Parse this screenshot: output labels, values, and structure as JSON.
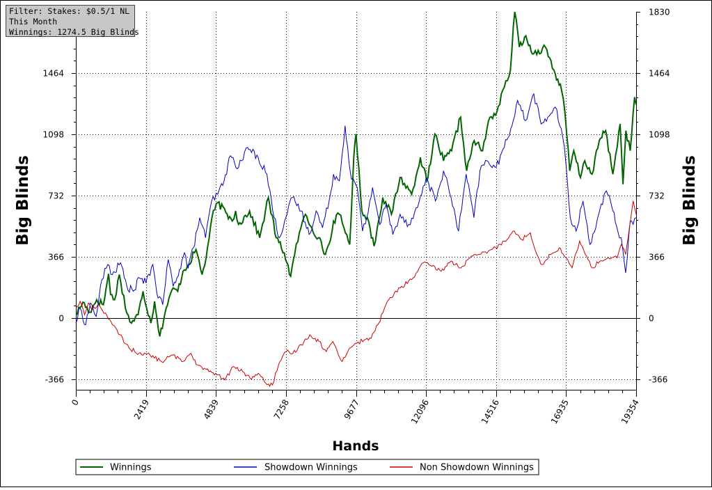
{
  "info": {
    "filter": "Filter: Stakes: $0.5/1 NL",
    "period": "This Month",
    "winnings": "Winnings: 1274.5 Big Blinds"
  },
  "chart_data": {
    "type": "line",
    "xlabel": "Hands",
    "ylabel": "Big Blinds",
    "ylabel_right": "Big Blinds",
    "xlim": [
      0,
      19354
    ],
    "ylim": [
      -420,
      1830
    ],
    "x_ticks": [
      0,
      2419,
      4839,
      7258,
      9677,
      12096,
      14516,
      16935,
      19354
    ],
    "y_ticks": [
      -366,
      0,
      366,
      732,
      1098,
      1464,
      1830
    ],
    "grid": true,
    "legend_position": "bottom",
    "series": [
      {
        "name": "Winnings",
        "color": "#006400",
        "x": [
          0,
          240,
          480,
          720,
          950,
          1130,
          1200,
          1340,
          1500,
          1760,
          1920,
          2150,
          2320,
          2590,
          2720,
          2900,
          3120,
          3360,
          3520,
          3700,
          3890,
          4150,
          4360,
          4500,
          4700,
          4900,
          5180,
          5400,
          5520,
          5620,
          6000,
          6350,
          6650,
          6920,
          7200,
          7420,
          7560,
          7720,
          7930,
          8150,
          8380,
          8620,
          8800,
          8900,
          9100,
          9260,
          9460,
          9600,
          9680,
          9880,
          10070,
          10300,
          10600,
          10900,
          11200,
          11600,
          11900,
          12120,
          12250,
          12400,
          12700,
          12980,
          13290,
          13500,
          13760,
          14050,
          14300,
          14540,
          14800,
          15010,
          15160,
          15320,
          15500,
          15820,
          16220,
          16560,
          16780,
          16900,
          17060,
          17200,
          17430,
          17580,
          17830,
          18080,
          18300,
          18550,
          18800,
          18900,
          19000,
          19150,
          19300,
          19354
        ],
        "y": [
          20,
          95,
          35,
          110,
          80,
          265,
          140,
          110,
          260,
          30,
          -30,
          20,
          160,
          -30,
          100,
          -110,
          60,
          180,
          160,
          280,
          320,
          410,
          260,
          360,
          600,
          690,
          630,
          580,
          640,
          560,
          640,
          480,
          720,
          480,
          390,
          250,
          380,
          510,
          620,
          540,
          480,
          380,
          470,
          580,
          620,
          540,
          440,
          960,
          1100,
          640,
          600,
          430,
          720,
          620,
          840,
          740,
          960,
          820,
          920,
          1100,
          940,
          1000,
          1200,
          880,
          1060,
          1000,
          1200,
          1230,
          1380,
          1480,
          1840,
          1620,
          1680,
          1580,
          1620,
          1460,
          1360,
          1220,
          880,
          1000,
          840,
          940,
          860,
          1060,
          1120,
          860,
          1160,
          800,
          1120,
          1000,
          1320,
          1274.5
        ]
      },
      {
        "name": "Showdown Winnings",
        "color": "#0000bb",
        "x": [
          0,
          150,
          340,
          500,
          700,
          900,
          1100,
          1260,
          1540,
          1760,
          1980,
          2200,
          2420,
          2660,
          2840,
          3000,
          3190,
          3360,
          3580,
          3750,
          3880,
          4060,
          4280,
          4480,
          4690,
          4900,
          5120,
          5340,
          5620,
          5930,
          6300,
          6600,
          6850,
          7030,
          7210,
          7480,
          7780,
          8060,
          8300,
          8520,
          8750,
          8900,
          9100,
          9300,
          9520,
          9720,
          9900,
          10050,
          10250,
          10500,
          10720,
          10950,
          11200,
          11500,
          11800,
          12100,
          12420,
          12700,
          12960,
          13220,
          13480,
          13750,
          13960,
          14200,
          14520,
          14800,
          15020,
          15260,
          15530,
          15820,
          16070,
          16300,
          16560,
          16820,
          16930,
          17080,
          17280,
          17520,
          17760,
          18060,
          18330,
          18550,
          18720,
          18840,
          18990,
          19150,
          19250,
          19354
        ],
        "y": [
          -30,
          60,
          -40,
          90,
          10,
          230,
          320,
          260,
          330,
          190,
          160,
          240,
          210,
          320,
          120,
          80,
          350,
          190,
          290,
          390,
          300,
          420,
          600,
          480,
          700,
          740,
          820,
          970,
          900,
          1020,
          960,
          860,
          600,
          480,
          580,
          720,
          640,
          500,
          640,
          540,
          700,
          860,
          820,
          1150,
          830,
          780,
          520,
          600,
          780,
          560,
          680,
          500,
          620,
          560,
          660,
          840,
          700,
          880,
          720,
          520,
          860,
          600,
          880,
          940,
          900,
          1020,
          1130,
          1300,
          1180,
          1340,
          1160,
          1200,
          1260,
          1080,
          920,
          600,
          520,
          700,
          440,
          620,
          760,
          640,
          520,
          480,
          270,
          580,
          560,
          600
        ]
      },
      {
        "name": "Non Showdown Winnings",
        "color": "#cc0000",
        "x": [
          0,
          150,
          300,
          430,
          570,
          760,
          1020,
          1260,
          1520,
          1840,
          2180,
          2560,
          2960,
          3360,
          3660,
          3970,
          4200,
          4440,
          4600,
          4880,
          5150,
          5440,
          5760,
          6020,
          6300,
          6560,
          6790,
          7000,
          7270,
          7500,
          7780,
          8080,
          8400,
          8650,
          8880,
          9200,
          9450,
          9700,
          9960,
          10200,
          10430,
          10600,
          10760,
          11200,
          11650,
          12000,
          12300,
          12620,
          12950,
          13300,
          13620,
          13940,
          14250,
          14500,
          14800,
          15100,
          15400,
          15700,
          15880,
          16100,
          16400,
          16700,
          16920,
          17140,
          17400,
          17600,
          17840,
          18100,
          18400,
          18700,
          18840,
          18990,
          19120,
          19250,
          19354
        ],
        "y": [
          60,
          100,
          20,
          90,
          50,
          80,
          30,
          -40,
          -100,
          -180,
          -210,
          -220,
          -260,
          -220,
          -260,
          -210,
          -280,
          -300,
          -320,
          -340,
          -370,
          -290,
          -320,
          -360,
          -330,
          -390,
          -400,
          -280,
          -200,
          -210,
          -160,
          -100,
          -140,
          -200,
          -140,
          -260,
          -180,
          -150,
          -130,
          -120,
          -40,
          30,
          100,
          180,
          240,
          330,
          310,
          280,
          340,
          300,
          360,
          380,
          400,
          420,
          460,
          520,
          470,
          510,
          400,
          320,
          380,
          420,
          360,
          300,
          460,
          380,
          300,
          340,
          360,
          360,
          440,
          380,
          540,
          700,
          620
        ]
      }
    ]
  }
}
